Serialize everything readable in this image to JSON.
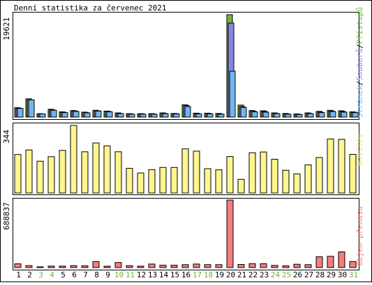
{
  "title": "Denní statistika za červenec 2021",
  "colors": {
    "hits": "#74b33f",
    "files": "#8a85e0",
    "pages": "#6fb7ee",
    "visits": "#fff68f",
    "kbytes": "#f47d7d",
    "weekend_label": "#74b33f",
    "weekday_label": "#000000"
  },
  "chart_data": [
    {
      "type": "bar",
      "id": "hits-files-pages",
      "max_label": "19621",
      "legend_parts": [
        "Stránek",
        "/",
        "Souborů",
        "/",
        "Přístupů"
      ],
      "ylim": [
        0,
        19621
      ],
      "categories": [
        "1",
        "2",
        "3",
        "4",
        "5",
        "6",
        "7",
        "8",
        "9",
        "10",
        "11",
        "12",
        "13",
        "14",
        "15",
        "16",
        "17",
        "18",
        "19",
        "20",
        "21",
        "22",
        "23",
        "24",
        "25",
        "26",
        "27",
        "28",
        "29",
        "30",
        "31"
      ],
      "series": [
        {
          "name": "Přístupů",
          "key": "hits",
          "values": [
            1800,
            3500,
            650,
            1500,
            1000,
            1250,
            950,
            1300,
            1150,
            800,
            650,
            650,
            650,
            800,
            700,
            2350,
            750,
            750,
            700,
            19621,
            2300,
            1250,
            1200,
            800,
            700,
            600,
            800,
            1100,
            1300,
            1200,
            1000
          ]
        },
        {
          "name": "Souborů",
          "key": "files",
          "values": [
            1700,
            3300,
            600,
            1350,
            900,
            1150,
            850,
            1200,
            1050,
            700,
            600,
            600,
            600,
            700,
            650,
            2200,
            650,
            650,
            600,
            18000,
            2000,
            1100,
            1050,
            700,
            600,
            550,
            700,
            950,
            1150,
            1050,
            900
          ]
        },
        {
          "name": "Stránek",
          "key": "pages",
          "values": [
            1650,
            3300,
            600,
            1300,
            850,
            1100,
            800,
            1150,
            1000,
            650,
            550,
            550,
            550,
            650,
            600,
            2000,
            600,
            600,
            550,
            8800,
            1850,
            1000,
            950,
            650,
            550,
            500,
            650,
            850,
            1050,
            950,
            850
          ]
        }
      ]
    },
    {
      "type": "bar",
      "id": "visits",
      "max_label": "344",
      "legend": "Návštěv",
      "ylim": [
        0,
        344
      ],
      "categories": [
        "1",
        "2",
        "3",
        "4",
        "5",
        "6",
        "7",
        "8",
        "9",
        "10",
        "11",
        "12",
        "13",
        "14",
        "15",
        "16",
        "17",
        "18",
        "19",
        "20",
        "21",
        "22",
        "23",
        "24",
        "25",
        "26",
        "27",
        "28",
        "29",
        "30",
        "31"
      ],
      "series": [
        {
          "name": "Návštěv",
          "key": "visits",
          "values": [
            196,
            219,
            162,
            185,
            217,
            344,
            210,
            255,
            240,
            210,
            126,
            102,
            119,
            130,
            130,
            225,
            213,
            124,
            118,
            186,
            70,
            205,
            209,
            172,
            116,
            97,
            143,
            181,
            275,
            273,
            197
          ]
        }
      ]
    },
    {
      "type": "bar",
      "id": "kbytes",
      "max_label": "688837",
      "legend": "Objem přenosu",
      "ylim": [
        0,
        688837
      ],
      "categories": [
        "1",
        "2",
        "3",
        "4",
        "5",
        "6",
        "7",
        "8",
        "9",
        "10",
        "11",
        "12",
        "13",
        "14",
        "15",
        "16",
        "17",
        "18",
        "19",
        "20",
        "21",
        "22",
        "23",
        "24",
        "25",
        "26",
        "27",
        "28",
        "29",
        "30",
        "31"
      ],
      "series": [
        {
          "name": "Objem přenosu",
          "key": "kbytes",
          "values": [
            38000,
            20000,
            8000,
            15000,
            15000,
            20000,
            18000,
            62000,
            14000,
            52000,
            20000,
            14000,
            36000,
            24000,
            24000,
            30000,
            36000,
            30000,
            30000,
            688837,
            32000,
            40000,
            40000,
            22000,
            18000,
            34000,
            30000,
            110000,
            115000,
            160000,
            62000
          ]
        }
      ]
    }
  ],
  "x_labels": {
    "days": [
      "1",
      "2",
      "3",
      "4",
      "5",
      "6",
      "7",
      "8",
      "9",
      "10",
      "11",
      "12",
      "13",
      "14",
      "15",
      "16",
      "17",
      "18",
      "19",
      "20",
      "21",
      "22",
      "23",
      "24",
      "25",
      "26",
      "27",
      "28",
      "29",
      "30",
      "31"
    ],
    "weekend": [
      false,
      false,
      true,
      true,
      false,
      false,
      false,
      false,
      false,
      true,
      true,
      false,
      false,
      false,
      false,
      false,
      true,
      true,
      false,
      false,
      false,
      false,
      false,
      true,
      true,
      false,
      false,
      false,
      false,
      false,
      true
    ]
  }
}
